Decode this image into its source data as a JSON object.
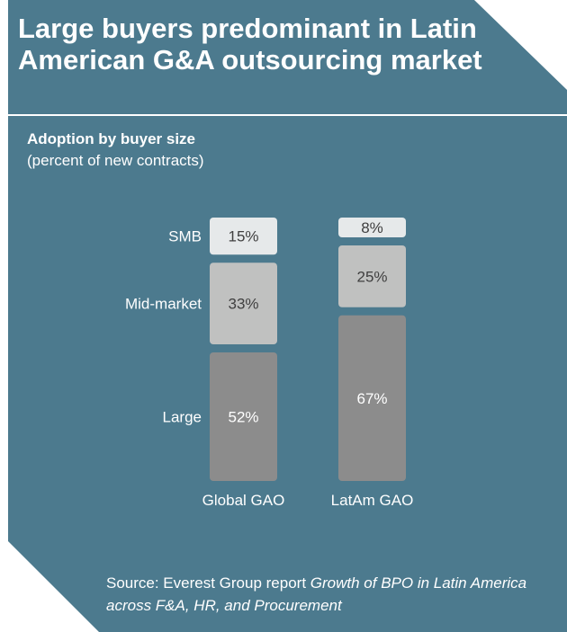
{
  "title": "Large buyers predominant in Latin American G&A outsourcing market",
  "subtitle": "Adoption by buyer size",
  "subtitle_note": "(percent of new contracts)",
  "colors": {
    "background": "#4c7a8e",
    "smb": "#e6e9ea",
    "mid_market": "#c0c1c0",
    "large": "#8c8c8c"
  },
  "chart_data": {
    "type": "bar",
    "stacked": true,
    "categories": [
      "Global GAO",
      "LatAm GAO"
    ],
    "series": [
      {
        "name": "Large",
        "values": [
          52,
          67
        ],
        "labels": [
          "52%",
          "67%"
        ]
      },
      {
        "name": "Mid-market",
        "values": [
          33,
          25
        ],
        "labels": [
          "33%",
          "25%"
        ]
      },
      {
        "name": "SMB",
        "values": [
          15,
          8
        ],
        "labels": [
          "15%",
          "8%"
        ]
      }
    ],
    "ylim": [
      0,
      100
    ],
    "grid": false
  },
  "source": {
    "prefix": "Source: Everest Group report ",
    "report_title": "Growth of BPO in Latin America across F&A, HR, and Procurement"
  }
}
